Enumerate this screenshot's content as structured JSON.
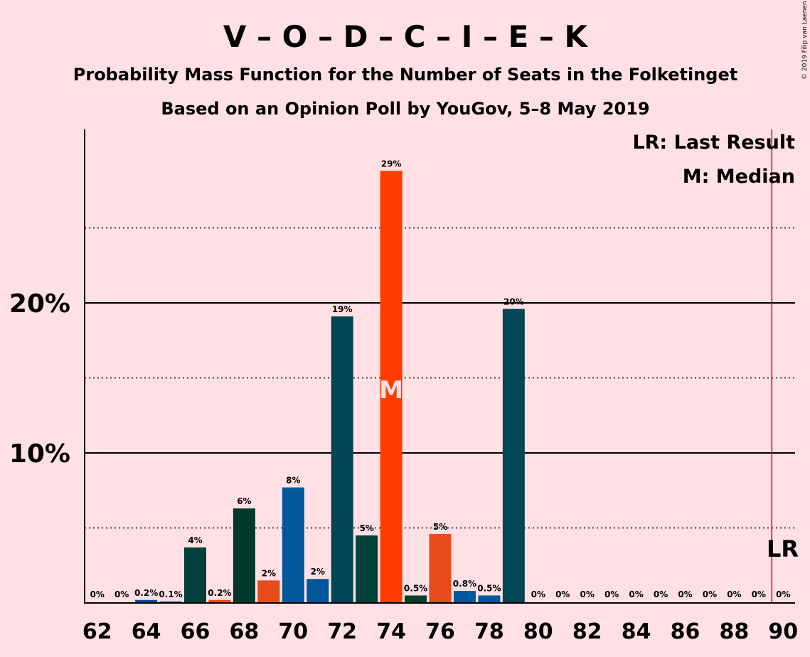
{
  "title": "V – O – D – C – I – E – K",
  "subtitle1": "Probability Mass Function for the Number of Seats in the Folketinget",
  "subtitle2": "Based on an Opinion Poll by YouGov, 5–8 May 2019",
  "copyright": "© 2019 Filip van Laenen",
  "legend": {
    "last_result": "LR: Last Result",
    "median": "M: Median"
  },
  "markers": {
    "median_label": "M",
    "median_seat": 74,
    "last_result_label": "LR",
    "last_result_seat": 90,
    "last_result_color": "#cc0033"
  },
  "chart_data": {
    "type": "bar",
    "x": [
      62,
      63,
      64,
      65,
      66,
      67,
      68,
      69,
      70,
      71,
      72,
      73,
      74,
      75,
      76,
      77,
      78,
      79,
      80,
      81,
      82,
      83,
      84,
      85,
      86,
      87,
      88,
      89,
      90
    ],
    "values": [
      0,
      0,
      0.2,
      0.1,
      3.7,
      0.2,
      6.3,
      1.5,
      7.7,
      1.6,
      19.1,
      4.5,
      28.8,
      0.5,
      4.6,
      0.8,
      0.5,
      19.6,
      0,
      0,
      0,
      0,
      0,
      0,
      0,
      0,
      0,
      0,
      0
    ],
    "labels": [
      "0%",
      "0%",
      "0.2%",
      "0.1%",
      "4%",
      "0.2%",
      "6%",
      "2%",
      "8%",
      "2%",
      "19%",
      "5%",
      "29%",
      "0.5%",
      "5%",
      "0.8%",
      "0.5%",
      "20%",
      "0%",
      "0%",
      "0%",
      "0%",
      "0%",
      "0%",
      "0%",
      "0%",
      "0%",
      "0%",
      "0%"
    ],
    "colors": [
      "#004a5a",
      "#004a5a",
      "#004a9a",
      "#004a5a",
      "#003f3a",
      "#e84b1a",
      "#00392a",
      "#e84b1a",
      "#00589a",
      "#00579a",
      "#004654",
      "#003f3a",
      "#ff3d00",
      "#003f2a",
      "#e84b1a",
      "#00589a",
      "#00589a",
      "#004654",
      "#004a5a",
      "#004a5a",
      "#004a5a",
      "#004a5a",
      "#004a5a",
      "#004a5a",
      "#004a5a",
      "#004a5a",
      "#004a5a",
      "#004a5a",
      "#004a5a"
    ],
    "xticks": [
      62,
      64,
      66,
      68,
      70,
      72,
      74,
      76,
      78,
      80,
      82,
      84,
      86,
      88,
      90
    ],
    "yticks": [
      {
        "value": 10,
        "label": "10%"
      },
      {
        "value": 20,
        "label": "20%"
      }
    ],
    "dotted_grid": [
      5,
      15,
      25
    ],
    "ylim": [
      0,
      31.5
    ],
    "xlabel": "",
    "ylabel": ""
  }
}
